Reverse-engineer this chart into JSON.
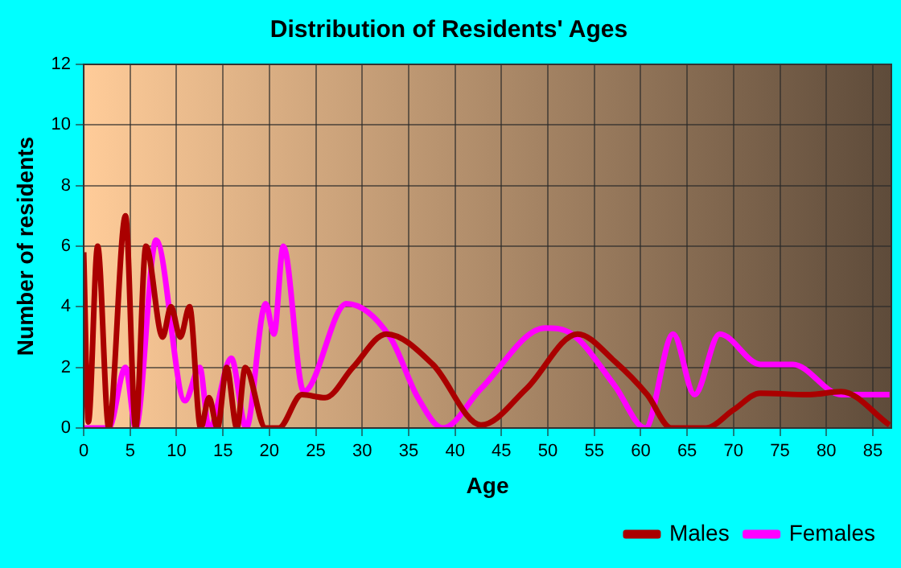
{
  "chart_data": {
    "type": "line",
    "title": "Distribution of Residents' Ages",
    "xlabel": "Age",
    "ylabel": "Number of residents",
    "xlim": [
      0,
      87
    ],
    "xticks": [
      0,
      5,
      10,
      15,
      20,
      25,
      30,
      35,
      40,
      45,
      50,
      55,
      60,
      65,
      70,
      75,
      80,
      85
    ],
    "ylim": [
      0,
      12
    ],
    "yticks": [
      0,
      2,
      4,
      6,
      8,
      10,
      12
    ],
    "grid": true,
    "legend": "bottom right",
    "marker": "none",
    "line_style": "solid",
    "series": [
      {
        "name": "Males",
        "color": "#aa0000",
        "x": [
          0,
          0.5,
          1.5,
          2.7,
          4.5,
          5.6,
          6.7,
          8.5,
          9.4,
          10.4,
          11.4,
          12.6,
          13.5,
          14.4,
          15.4,
          16.5,
          17.4,
          19.6,
          21,
          23.5,
          26,
          29,
          32.6,
          37.6,
          42.8,
          47.7,
          53.2,
          57.2,
          60.7,
          63.3,
          67,
          70,
          72.9,
          78,
          81.6,
          86.8
        ],
        "values": [
          5.8,
          0.2,
          6,
          0,
          7,
          0,
          6,
          3,
          4,
          3,
          4,
          0,
          1,
          0,
          2,
          0,
          2,
          0,
          0,
          1.1,
          1,
          2,
          3.1,
          2.1,
          0.1,
          1.3,
          3.1,
          2.2,
          1.1,
          0,
          0,
          0.6,
          1.15,
          1.1,
          1.2,
          0.1
        ]
      },
      {
        "name": "Females",
        "color": "#ff00ff",
        "x": [
          0,
          2.7,
          4.5,
          5.6,
          7.8,
          10.9,
          12.5,
          13.5,
          15.9,
          17.5,
          19.6,
          20.5,
          21.5,
          23.7,
          28.3,
          33,
          36,
          38.7,
          42.8,
          49.7,
          52.6,
          57.2,
          60.5,
          63.5,
          65.8,
          68.5,
          72.9,
          76.4,
          81.6,
          86.8
        ],
        "values": [
          0,
          0,
          2,
          0,
          6.2,
          0.9,
          2,
          0,
          2.3,
          0,
          4.1,
          3.1,
          6,
          1.2,
          4.1,
          3,
          1,
          0,
          1.3,
          3.3,
          3.1,
          1.4,
          0,
          3.1,
          1.1,
          3.1,
          2.1,
          2.1,
          1.1,
          1.1
        ]
      }
    ]
  }
}
